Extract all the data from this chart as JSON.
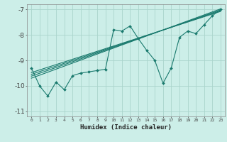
{
  "xlabel": "Humidex (Indice chaleur)",
  "bg_color": "#cceee8",
  "grid_color": "#aad4cc",
  "line_color": "#1a7a6e",
  "xlim": [
    -0.5,
    23.5
  ],
  "ylim": [
    -11.2,
    -6.8
  ],
  "yticks": [
    -11,
    -10,
    -9,
    -8,
    -7
  ],
  "xticks": [
    0,
    1,
    2,
    3,
    4,
    5,
    6,
    7,
    8,
    9,
    10,
    11,
    12,
    13,
    14,
    15,
    16,
    17,
    18,
    19,
    20,
    21,
    22,
    23
  ],
  "line1_x": [
    0,
    1,
    2,
    3,
    4,
    5,
    6,
    7,
    8,
    9,
    10,
    11,
    12,
    13,
    14,
    15,
    16,
    17,
    18,
    19,
    20,
    21,
    22,
    23
  ],
  "line1_y": [
    -9.3,
    -10.0,
    -10.4,
    -9.85,
    -10.15,
    -9.6,
    -9.5,
    -9.45,
    -9.4,
    -9.35,
    -7.8,
    -7.85,
    -7.65,
    -8.15,
    -8.6,
    -9.0,
    -9.9,
    -9.3,
    -8.1,
    -7.85,
    -7.95,
    -7.6,
    -7.25,
    -7.0
  ],
  "line2_x": [
    0,
    23
  ],
  "line2_y": [
    -9.55,
    -7.05
  ],
  "line3_x": [
    0,
    23
  ],
  "line3_y": [
    -9.48,
    -7.08
  ],
  "line4_x": [
    0,
    23
  ],
  "line4_y": [
    -9.62,
    -7.02
  ],
  "line5_x": [
    0,
    23
  ],
  "line5_y": [
    -9.7,
    -6.98
  ]
}
